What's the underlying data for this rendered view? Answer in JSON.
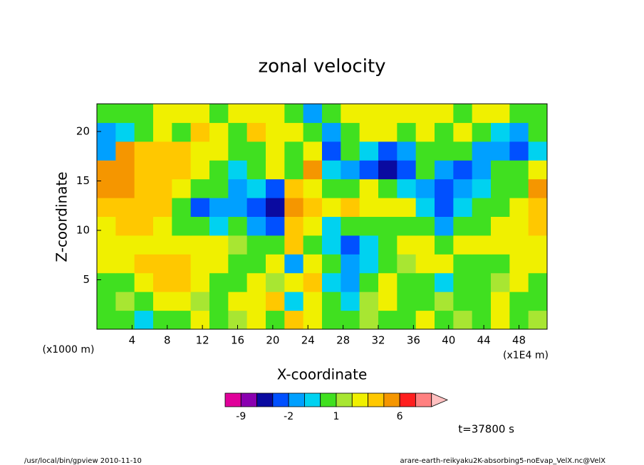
{
  "chart_data": {
    "type": "contourf",
    "title": "zonal velocity",
    "xlabel": "X-coordinate",
    "ylabel": "Z-coordinate",
    "xunit": "(x1E4 m)",
    "yunit": "(x1000 m)",
    "time_label": "t=37800 s",
    "footer_left": "/usr/local/bin/gpview  2010-11-10",
    "footer_right": "arare-earth-reikyaku2K-absorbing5-noEvap_VelX.nc@VelX",
    "xlim": [
      0,
      51.2
    ],
    "ylim": [
      0,
      22.8
    ],
    "xticks": [
      4,
      8,
      12,
      16,
      20,
      24,
      28,
      32,
      36,
      40,
      44,
      48
    ],
    "yticks": [
      5,
      10,
      15,
      20
    ],
    "x": [
      1.07,
      3.2,
      5.33,
      7.47,
      9.6,
      11.73,
      13.87,
      16,
      18.13,
      20.27,
      22.4,
      24.53,
      26.67,
      28.8,
      30.93,
      33.07,
      35.2,
      37.33,
      39.47,
      41.6,
      43.73,
      45.87,
      48,
      50.13
    ],
    "y": [
      0.95,
      2.85,
      4.75,
      6.65,
      8.55,
      10.45,
      12.35,
      14.25,
      16.15,
      18.05,
      19.95,
      21.85
    ],
    "z": [
      [
        0.5,
        0.5,
        -0.5,
        0.5,
        0.5,
        2.5,
        0.5,
        1.5,
        2.5,
        0.5,
        3.5,
        2.5,
        0.5,
        0.5,
        1.5,
        0.5,
        0.5,
        2.5,
        0.5,
        1.5,
        0.5,
        2.5,
        0.5,
        1.5
      ],
      [
        0.5,
        1.5,
        0.5,
        2.5,
        2.5,
        1.5,
        0.5,
        2.5,
        2.5,
        3.5,
        -0.5,
        2.5,
        0.5,
        -0.5,
        1.5,
        2.5,
        0.5,
        0.5,
        1.5,
        0.5,
        0.5,
        2.5,
        0.5,
        0.5
      ],
      [
        0.5,
        0.5,
        2.5,
        3.5,
        3.5,
        2.5,
        0.5,
        0.5,
        2.5,
        1.5,
        2.5,
        3.5,
        -0.5,
        -1.5,
        0.5,
        2.5,
        0.5,
        0.5,
        -0.5,
        0.5,
        0.5,
        1.5,
        2.5,
        0.5
      ],
      [
        2.5,
        2.5,
        3.5,
        3.5,
        3.5,
        2.5,
        2.5,
        0.5,
        0.5,
        2.5,
        -1.5,
        2.5,
        0.5,
        -1.5,
        -0.5,
        0.5,
        1.5,
        2.5,
        2.5,
        0.5,
        0.5,
        0.5,
        2.5,
        2.5
      ],
      [
        2.5,
        2.5,
        2.5,
        2.5,
        2.5,
        2.5,
        2.5,
        1.5,
        0.5,
        0.5,
        3.5,
        0.5,
        -0.5,
        -2.5,
        -0.5,
        0.5,
        2.5,
        2.5,
        0.5,
        2.5,
        2.5,
        2.5,
        2.5,
        2.5
      ],
      [
        2.5,
        3.5,
        3.5,
        2.5,
        0.5,
        0.5,
        -0.5,
        0.5,
        -1.5,
        -2.5,
        3.5,
        2.5,
        -0.5,
        0.5,
        0.5,
        0.5,
        0.5,
        0.5,
        -1.5,
        0.5,
        0.5,
        2.5,
        2.5,
        3.5
      ],
      [
        3.5,
        3.5,
        3.5,
        3.5,
        0.5,
        -2.5,
        -1.5,
        -1.5,
        -2.5,
        -4,
        5,
        3.5,
        2.5,
        3.5,
        2.5,
        2.5,
        2.5,
        -0.5,
        -2.5,
        -0.5,
        0.5,
        0.5,
        2.5,
        3.5
      ],
      [
        5,
        5,
        3.5,
        3.5,
        2.5,
        0.5,
        0.5,
        -1.5,
        -0.5,
        -2.5,
        3.5,
        2.5,
        0.5,
        0.5,
        2.5,
        0.5,
        -0.5,
        -1.5,
        -2.5,
        -1.5,
        -0.5,
        0.5,
        0.5,
        5
      ],
      [
        5,
        5,
        3.5,
        3.5,
        3.5,
        2.5,
        0.5,
        -0.5,
        0.5,
        2.5,
        0.5,
        5,
        -0.5,
        -1.5,
        -2.5,
        -4,
        -2.5,
        0.5,
        -1.5,
        -2.5,
        -1.5,
        0.5,
        0.5,
        2.5
      ],
      [
        -1.5,
        5,
        3.5,
        3.5,
        3.5,
        2.5,
        2.5,
        0.5,
        0.5,
        2.5,
        0.5,
        2.5,
        -2.5,
        0.5,
        -0.5,
        -2.5,
        -1.5,
        0.5,
        0.5,
        0.5,
        -1.5,
        -1.5,
        -2.5,
        -0.5
      ],
      [
        -1.5,
        -0.5,
        0.5,
        2.5,
        0.5,
        3.5,
        2.5,
        0.5,
        3.5,
        2.5,
        2.5,
        0.5,
        -1.5,
        0.5,
        2.5,
        2.5,
        0.5,
        2.5,
        0.5,
        2.5,
        0.5,
        -0.5,
        -1.5,
        0.5
      ],
      [
        0.5,
        0.5,
        0.5,
        2.5,
        2.5,
        2.5,
        0.5,
        2.5,
        2.5,
        2.5,
        0.5,
        -1.5,
        0.5,
        2.5,
        2.5,
        2.5,
        2.5,
        2.5,
        2.5,
        0.5,
        2.5,
        2.5,
        0.5,
        0.5
      ]
    ],
    "colorbar": {
      "levels": [
        -12,
        -9,
        -6,
        -3,
        -2,
        -1,
        0,
        1,
        2,
        3,
        4,
        6,
        9,
        12
      ],
      "colors": [
        "#e0009a",
        "#8a00b0",
        "#0a0aa0",
        "#0050ff",
        "#00a0ff",
        "#00d2f0",
        "#40e020",
        "#a8e632",
        "#f0f000",
        "#ffc800",
        "#f59600",
        "#ff1e1e",
        "#ff8080",
        "#ffc0c0"
      ],
      "ticks": [
        -9,
        -2,
        1,
        6
      ]
    }
  }
}
